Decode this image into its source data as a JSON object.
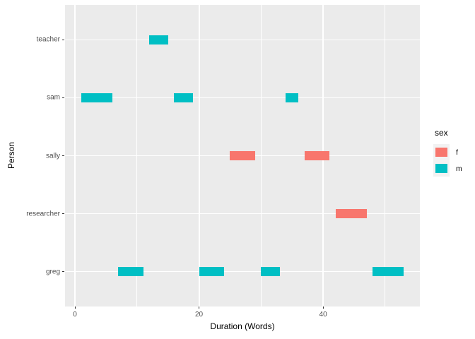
{
  "figure": {
    "background": "#FFFFFF",
    "panel_background": "#EBEBEB",
    "grid_color": "#FFFFFF",
    "tick_mark_color": "#333333",
    "tick_label_color": "#4D4D4D",
    "axis_title_color": "#000000"
  },
  "chart_data": {
    "type": "bar",
    "subtype": "horizontal-segment-gantt",
    "title": "",
    "xlabel": "Duration (Words)",
    "ylabel": "Person",
    "xlim": [
      -1.6,
      55.6
    ],
    "x_major_ticks": [
      0,
      20,
      40
    ],
    "x_minor_ticks": [
      10,
      30,
      50
    ],
    "grid": "on",
    "categories": [
      "greg",
      "researcher",
      "sally",
      "sam",
      "teacher"
    ],
    "segments": [
      {
        "person": "teacher",
        "start": 12,
        "end": 15,
        "sex": "m"
      },
      {
        "person": "sam",
        "start": 1,
        "end": 6,
        "sex": "m"
      },
      {
        "person": "sam",
        "start": 16,
        "end": 19,
        "sex": "m"
      },
      {
        "person": "sam",
        "start": 34,
        "end": 36,
        "sex": "m"
      },
      {
        "person": "sally",
        "start": 25,
        "end": 29,
        "sex": "f"
      },
      {
        "person": "sally",
        "start": 37,
        "end": 41,
        "sex": "f"
      },
      {
        "person": "researcher",
        "start": 42,
        "end": 47,
        "sex": "f"
      },
      {
        "person": "greg",
        "start": 7,
        "end": 11,
        "sex": "m"
      },
      {
        "person": "greg",
        "start": 20,
        "end": 24,
        "sex": "m"
      },
      {
        "person": "greg",
        "start": 30,
        "end": 33,
        "sex": "m"
      },
      {
        "person": "greg",
        "start": 48,
        "end": 53,
        "sex": "m"
      }
    ],
    "legend": {
      "title": "sex",
      "position": "right",
      "entries": [
        {
          "label": "f",
          "color": "#F8766D"
        },
        {
          "label": "m",
          "color": "#00BFC4"
        }
      ]
    }
  }
}
